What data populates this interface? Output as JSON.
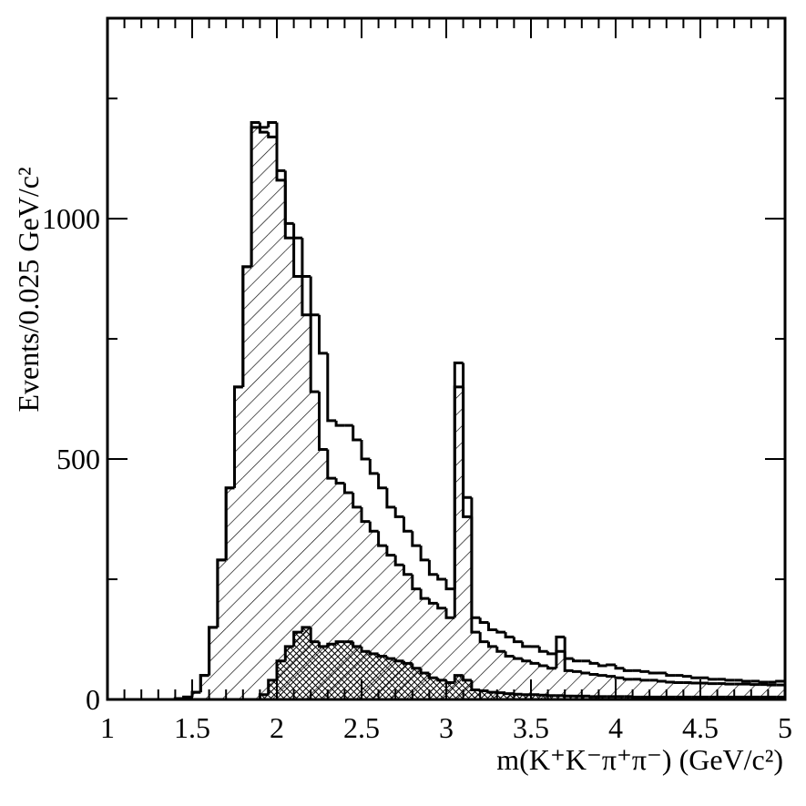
{
  "chart_data": {
    "type": "histogram",
    "xlabel": "m(K⁺K⁻π⁺π⁻) (GeV/c²)",
    "ylabel": "Events/0.025 GeV/c²",
    "xlim": [
      1,
      5
    ],
    "ylim": [
      0,
      1417
    ],
    "xticks": [
      1,
      1.5,
      2,
      2.5,
      3,
      3.5,
      4,
      4.5,
      5
    ],
    "yticks": [
      0,
      500,
      1000
    ],
    "bins": [
      1,
      1.05,
      1.1,
      1.15,
      1.2,
      1.25,
      1.3,
      1.35,
      1.4,
      1.45,
      1.5,
      1.55,
      1.6,
      1.65,
      1.7,
      1.75,
      1.8,
      1.85,
      1.9,
      1.95,
      2,
      2.05,
      2.1,
      2.15,
      2.2,
      2.25,
      2.3,
      2.35,
      2.4,
      2.45,
      2.5,
      2.55,
      2.6,
      2.65,
      2.7,
      2.75,
      2.8,
      2.85,
      2.9,
      2.95,
      3,
      3.05,
      3.1,
      3.15,
      3.2,
      3.25,
      3.3,
      3.35,
      3.4,
      3.45,
      3.5,
      3.55,
      3.6,
      3.65,
      3.7,
      3.75,
      3.8,
      3.85,
      3.9,
      3.95,
      4,
      4.05,
      4.1,
      4.15,
      4.2,
      4.25,
      4.3,
      4.35,
      4.4,
      4.45,
      4.5,
      4.55,
      4.6,
      4.65,
      4.7,
      4.75,
      4.8,
      4.85,
      4.9,
      4.95,
      5
    ],
    "series": [
      {
        "color": "#000000",
        "fill": "none",
        "values": [
          0,
          0,
          0,
          0,
          0,
          0,
          0,
          0,
          2,
          5,
          15,
          50,
          150,
          290,
          440,
          650,
          900,
          1200,
          1190,
          1200,
          1100,
          990,
          960,
          880,
          800,
          720,
          580,
          570,
          570,
          540,
          500,
          470,
          440,
          400,
          380,
          350,
          320,
          290,
          260,
          250,
          230,
          700,
          420,
          170,
          160,
          145,
          140,
          130,
          120,
          110,
          110,
          100,
          95,
          130,
          85,
          80,
          80,
          75,
          70,
          72,
          65,
          60,
          60,
          58,
          55,
          55,
          50,
          50,
          48,
          45,
          45,
          42,
          42,
          40,
          40,
          38,
          38,
          36,
          36,
          38
        ]
      },
      {
        "color": "#000000",
        "fill": "hatch",
        "values": [
          0,
          0,
          0,
          0,
          0,
          0,
          0,
          0,
          2,
          5,
          15,
          50,
          150,
          290,
          440,
          650,
          900,
          1190,
          1180,
          1170,
          1080,
          960,
          880,
          800,
          640,
          520,
          460,
          450,
          430,
          400,
          370,
          350,
          320,
          300,
          280,
          260,
          230,
          210,
          200,
          190,
          170,
          650,
          380,
          140,
          120,
          110,
          100,
          90,
          85,
          80,
          75,
          70,
          65,
          100,
          60,
          58,
          55,
          52,
          50,
          48,
          45,
          42,
          42,
          40,
          40,
          38,
          36,
          35,
          35,
          34,
          34,
          33,
          33,
          32,
          32,
          32,
          31,
          31,
          30,
          30
        ]
      },
      {
        "color": "#000000",
        "fill": "crosshatch",
        "values": [
          0,
          0,
          0,
          0,
          0,
          0,
          0,
          0,
          0,
          0,
          0,
          0,
          0,
          0,
          0,
          0,
          0,
          0,
          10,
          40,
          80,
          110,
          140,
          150,
          120,
          110,
          115,
          120,
          120,
          110,
          100,
          95,
          90,
          85,
          80,
          75,
          65,
          55,
          45,
          40,
          35,
          50,
          40,
          20,
          18,
          15,
          14,
          12,
          11,
          10,
          10,
          9,
          8,
          8,
          7,
          7,
          7,
          6,
          6,
          6,
          6,
          6,
          5,
          5,
          5,
          5,
          5,
          5,
          5,
          5,
          5,
          5,
          5,
          5,
          5,
          5,
          5,
          5,
          5,
          5
        ]
      }
    ]
  }
}
